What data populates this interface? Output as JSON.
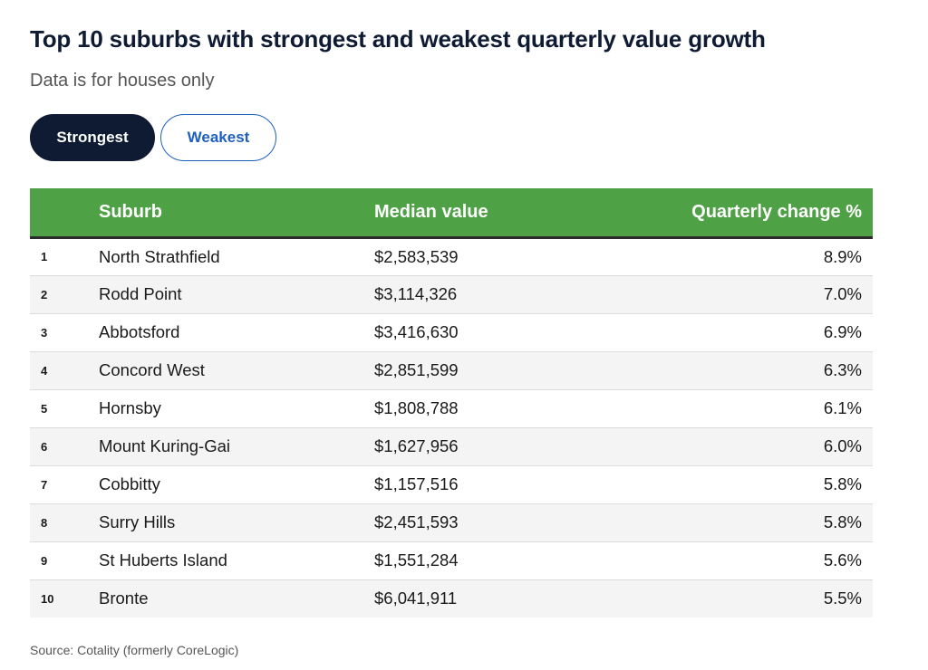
{
  "title": "Top 10 suburbs with strongest and weakest quarterly value growth",
  "subtitle": "Data is for houses only",
  "toggles": {
    "strongest_label": "Strongest",
    "weakest_label": "Weakest",
    "selected": "Strongest"
  },
  "colors": {
    "header_green": "#4fa145",
    "active_toggle": "#0f1b33",
    "inactive_toggle_text": "#1f5fbf"
  },
  "chart_data": {
    "type": "table",
    "title": "Top 10 suburbs with strongest and weakest quarterly value growth",
    "subtitle": "Data is for houses only",
    "columns": [
      "",
      "Suburb",
      "Median value",
      "Quarterly change %"
    ],
    "rows": [
      {
        "rank": "1",
        "suburb": "North Strathfield",
        "median": "$2,583,539",
        "change": "8.9%"
      },
      {
        "rank": "2",
        "suburb": "Rodd Point",
        "median": "$3,114,326",
        "change": "7.0%"
      },
      {
        "rank": "3",
        "suburb": "Abbotsford",
        "median": "$3,416,630",
        "change": "6.9%"
      },
      {
        "rank": "4",
        "suburb": "Concord West",
        "median": "$2,851,599",
        "change": "6.3%"
      },
      {
        "rank": "5",
        "suburb": "Hornsby",
        "median": "$1,808,788",
        "change": "6.1%"
      },
      {
        "rank": "6",
        "suburb": "Mount Kuring-Gai",
        "median": "$1,627,956",
        "change": "6.0%"
      },
      {
        "rank": "7",
        "suburb": "Cobbitty",
        "median": "$1,157,516",
        "change": "5.8%"
      },
      {
        "rank": "8",
        "suburb": "Surry Hills",
        "median": "$2,451,593",
        "change": "5.8%"
      },
      {
        "rank": "9",
        "suburb": "St Huberts Island",
        "median": "$1,551,284",
        "change": "5.6%"
      },
      {
        "rank": "10",
        "suburb": "Bronte",
        "median": "$6,041,911",
        "change": "5.5%"
      }
    ]
  },
  "source": "Source: Cotality (formerly CoreLogic)"
}
